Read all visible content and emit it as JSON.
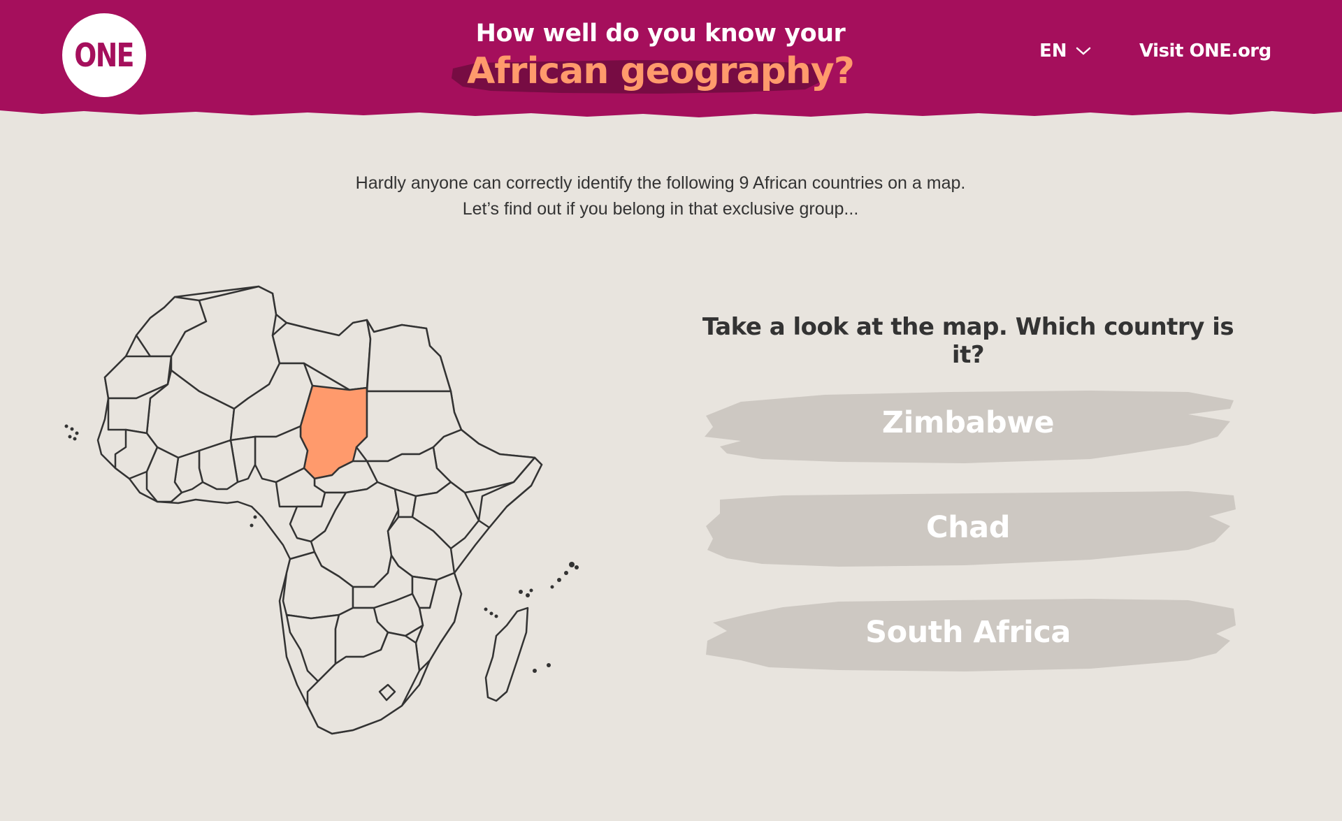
{
  "header": {
    "logo_text": "ONE",
    "title_line1": "How well do you know your",
    "title_line2": "African geography?",
    "language": "EN",
    "visit_link": "Visit ONE.org"
  },
  "intro": {
    "line1": "Hardly anyone can correctly identify the following 9 African countries on a map.",
    "line2": "Let’s find out if you belong in that exclusive group..."
  },
  "quiz": {
    "question": "Take a look at the map. Which country is it?",
    "answers": [
      "Zimbabwe",
      "Chad",
      "South Africa"
    ],
    "highlighted_country": "Chad"
  },
  "colors": {
    "brand": "#a50f5c",
    "accent": "#ff9a6c",
    "background": "#e8e4de",
    "brush": "#cdc8c2",
    "highlight": "#ff9a6c"
  }
}
